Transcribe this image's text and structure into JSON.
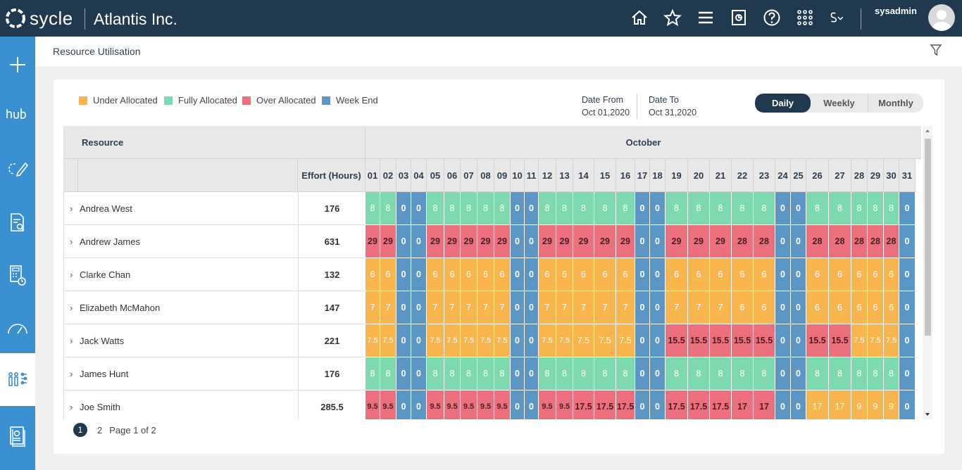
{
  "topbar": {
    "brand": "sycle",
    "company": "Atlantis Inc.",
    "username": "sysadmin"
  },
  "page": {
    "title": "Resource Utilisation"
  },
  "legend": [
    {
      "label": "Under Allocated",
      "color": "#f9b54e"
    },
    {
      "label": "Fully Allocated",
      "color": "#7dd9ae"
    },
    {
      "label": "Over Allocated",
      "color": "#ec6f7e"
    },
    {
      "label": "Week End",
      "color": "#5b96c5"
    }
  ],
  "dates": {
    "from_label": "Date From",
    "from_value": "Oct 01,2020",
    "to_label": "Date To",
    "to_value": "Oct 31,2020"
  },
  "view_toggle": {
    "options": [
      "Daily",
      "Weekly",
      "Monthly"
    ],
    "selected": "Daily"
  },
  "table": {
    "resource_header": "Resource",
    "effort_header": "Effort (Hours)",
    "month": "October",
    "days": [
      "01",
      "02",
      "03",
      "04",
      "05",
      "06",
      "07",
      "08",
      "09",
      "10",
      "11",
      "12",
      "13",
      "14",
      "15",
      "16",
      "17",
      "18",
      "19",
      "20",
      "21",
      "22",
      "23",
      "24",
      "25",
      "26",
      "27",
      "28",
      "29",
      "30",
      "31"
    ],
    "rows": [
      {
        "name": "Andrea West",
        "effort": "176",
        "values": [
          "8",
          "8",
          "0",
          "0",
          "8",
          "8",
          "8",
          "8",
          "8",
          "0",
          "0",
          "8",
          "8",
          "8",
          "8",
          "8",
          "0",
          "0",
          "8",
          "8",
          "8",
          "8",
          "8",
          "0",
          "0",
          "8",
          "8",
          "8",
          "8",
          "8",
          "0"
        ],
        "status": [
          "F",
          "F",
          "W",
          "W",
          "F",
          "F",
          "F",
          "F",
          "F",
          "W",
          "W",
          "F",
          "F",
          "F",
          "F",
          "F",
          "W",
          "W",
          "F",
          "F",
          "F",
          "F",
          "F",
          "W",
          "W",
          "F",
          "F",
          "F",
          "F",
          "F",
          "W"
        ]
      },
      {
        "name": "Andrew James",
        "effort": "631",
        "values": [
          "29",
          "29",
          "0",
          "0",
          "29",
          "29",
          "29",
          "29",
          "29",
          "0",
          "0",
          "29",
          "29",
          "29",
          "29",
          "29",
          "0",
          "0",
          "29",
          "29",
          "29",
          "28",
          "28",
          "0",
          "0",
          "28",
          "28",
          "28",
          "28",
          "28",
          "0"
        ],
        "status": [
          "O",
          "O",
          "W",
          "W",
          "O",
          "O",
          "O",
          "O",
          "O",
          "W",
          "W",
          "O",
          "O",
          "O",
          "O",
          "O",
          "W",
          "W",
          "O",
          "O",
          "O",
          "O",
          "O",
          "W",
          "W",
          "O",
          "O",
          "O",
          "O",
          "O",
          "W"
        ]
      },
      {
        "name": "Clarke Chan",
        "effort": "132",
        "values": [
          "6",
          "6",
          "0",
          "0",
          "6",
          "6",
          "6",
          "6",
          "6",
          "0",
          "0",
          "6",
          "6",
          "6",
          "6",
          "6",
          "0",
          "0",
          "6",
          "6",
          "6",
          "6",
          "6",
          "0",
          "0",
          "6",
          "6",
          "6",
          "6",
          "6",
          "0"
        ],
        "status": [
          "U",
          "U",
          "W",
          "W",
          "U",
          "U",
          "U",
          "U",
          "U",
          "W",
          "W",
          "U",
          "U",
          "U",
          "U",
          "U",
          "W",
          "W",
          "U",
          "U",
          "U",
          "U",
          "U",
          "W",
          "W",
          "U",
          "U",
          "U",
          "U",
          "U",
          "W"
        ]
      },
      {
        "name": "Elizabeth McMahon",
        "effort": "147",
        "values": [
          "7",
          "7",
          "0",
          "0",
          "7",
          "7",
          "7",
          "7",
          "7",
          "0",
          "0",
          "7",
          "7",
          "7",
          "7",
          "7",
          "0",
          "0",
          "7",
          "7",
          "7",
          "6",
          "6",
          "0",
          "0",
          "6",
          "6",
          "6",
          "6",
          "6",
          "0"
        ],
        "status": [
          "U",
          "U",
          "W",
          "W",
          "U",
          "U",
          "U",
          "U",
          "U",
          "W",
          "W",
          "U",
          "U",
          "U",
          "U",
          "U",
          "W",
          "W",
          "U",
          "U",
          "U",
          "U",
          "U",
          "W",
          "W",
          "U",
          "U",
          "U",
          "U",
          "U",
          "W"
        ]
      },
      {
        "name": "Jack Watts",
        "effort": "221",
        "values": [
          "7.5",
          "7.5",
          "0",
          "0",
          "7.5",
          "7.5",
          "7.5",
          "7.5",
          "7.5",
          "0",
          "0",
          "7.5",
          "7.5",
          "7.5",
          "7.5",
          "7.5",
          "0",
          "0",
          "15.5",
          "15.5",
          "15.5",
          "15.5",
          "15.5",
          "0",
          "0",
          "15.5",
          "15.5",
          "7.5",
          "7.5",
          "7.5",
          "0"
        ],
        "status": [
          "U",
          "U",
          "W",
          "W",
          "U",
          "U",
          "U",
          "U",
          "U",
          "W",
          "W",
          "U",
          "U",
          "U",
          "U",
          "U",
          "W",
          "W",
          "O",
          "O",
          "O",
          "O",
          "O",
          "W",
          "W",
          "O",
          "O",
          "U",
          "U",
          "U",
          "W"
        ]
      },
      {
        "name": "James Hunt",
        "effort": "176",
        "values": [
          "8",
          "8",
          "0",
          "0",
          "8",
          "8",
          "8",
          "8",
          "8",
          "0",
          "0",
          "8",
          "8",
          "8",
          "8",
          "8",
          "0",
          "0",
          "8",
          "8",
          "8",
          "8",
          "8",
          "0",
          "0",
          "8",
          "8",
          "8",
          "8",
          "8",
          "0"
        ],
        "status": [
          "F",
          "F",
          "W",
          "W",
          "F",
          "F",
          "F",
          "F",
          "F",
          "W",
          "W",
          "F",
          "F",
          "F",
          "F",
          "F",
          "W",
          "W",
          "F",
          "F",
          "F",
          "F",
          "F",
          "W",
          "W",
          "F",
          "F",
          "F",
          "F",
          "F",
          "W"
        ]
      },
      {
        "name": "Joe Smith",
        "effort": "285.5",
        "values": [
          "9.5",
          "9.5",
          "0",
          "0",
          "9.5",
          "9.5",
          "9.5",
          "9.5",
          "9.5",
          "0",
          "0",
          "9.5",
          "9.5",
          "17.5",
          "17.5",
          "17.5",
          "0",
          "0",
          "17.5",
          "17.5",
          "17.5",
          "17",
          "17",
          "0",
          "0",
          "17",
          "17",
          "9",
          "9",
          "9",
          "0"
        ],
        "status": [
          "O",
          "O",
          "W",
          "W",
          "O",
          "O",
          "O",
          "O",
          "O",
          "W",
          "W",
          "O",
          "O",
          "O",
          "O",
          "O",
          "W",
          "W",
          "O",
          "O",
          "O",
          "O",
          "O",
          "W",
          "W",
          "U",
          "U",
          "U",
          "U",
          "U",
          "W"
        ]
      }
    ]
  },
  "pager": {
    "current": "1",
    "next": "2",
    "summary": "Page 1 of 2"
  }
}
